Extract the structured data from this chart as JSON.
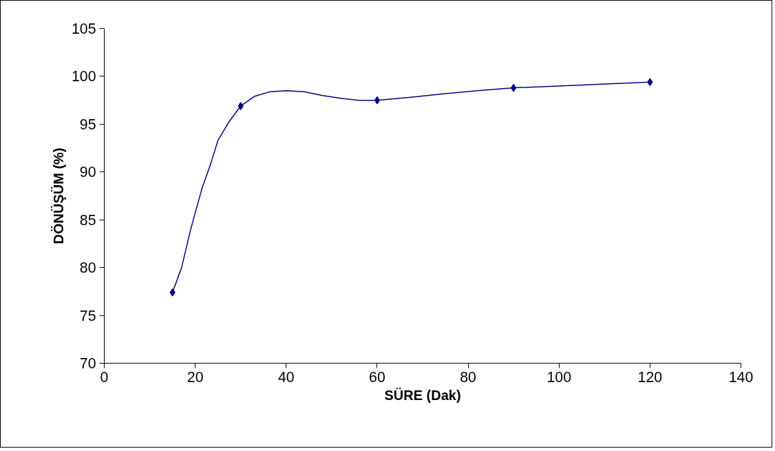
{
  "chart_data": {
    "type": "line",
    "xlabel": "SÜRE (Dak)",
    "ylabel": "DÖNÜŞÜM (%)",
    "x": [
      15,
      30,
      60,
      90,
      120
    ],
    "series": [
      {
        "color": "#000080",
        "marker": "none",
        "x": [
          15,
          17,
          19,
          21.5,
          23.5,
          25,
          27.5,
          30,
          33,
          36.5,
          40,
          44,
          48,
          52,
          56,
          60,
          67,
          75,
          82,
          90,
          105,
          120
        ],
        "values": [
          77.4,
          80,
          84,
          88.3,
          91,
          93.3,
          95.3,
          96.9,
          97.9,
          98.4,
          98.5,
          98.4,
          98.0,
          97.7,
          97.5,
          97.5,
          97.8,
          98.2,
          98.5,
          98.8,
          99.1,
          99.4
        ]
      },
      {
        "type": "scatter",
        "color": "#000080",
        "values": [
          77.4,
          96.9,
          97.5,
          98.8,
          99.4
        ]
      }
    ],
    "xlim": [
      0,
      140
    ],
    "xticks": [
      0,
      20,
      40,
      60,
      80,
      100,
      120,
      140
    ],
    "ylim": [
      70,
      105
    ],
    "yticks": [
      70,
      75,
      80,
      85,
      90,
      95,
      100,
      105
    ],
    "marker": "diamond",
    "line_style": "solid"
  }
}
